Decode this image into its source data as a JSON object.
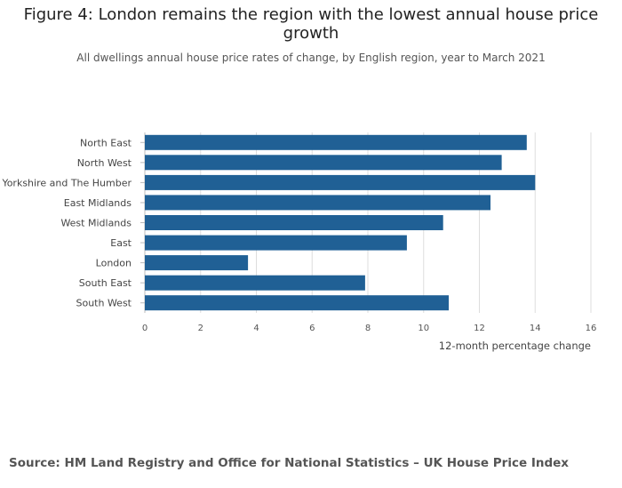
{
  "title": "Figure 4: London remains the region with the lowest annual house price growth",
  "subtitle": "All dwellings annual house price rates of change, by English region, year to March 2021",
  "source": "Source: HM Land Registry and Office for National Statistics – UK House Price Index",
  "colors": {
    "bar": "#206095",
    "grid": "#dddddd",
    "axis": "#bbbbbb"
  },
  "chart_data": {
    "type": "bar",
    "orientation": "horizontal",
    "categories": [
      "North East",
      "North West",
      "Yorkshire and The Humber",
      "East Midlands",
      "West Midlands",
      "East",
      "London",
      "South East",
      "South West"
    ],
    "values": [
      13.7,
      12.8,
      14.0,
      12.4,
      10.7,
      9.4,
      3.7,
      7.9,
      10.9
    ],
    "xlim": [
      0,
      16
    ],
    "xticks": [
      0,
      2,
      4,
      6,
      8,
      10,
      12,
      14,
      16
    ],
    "xlabel": "12-month percentage change",
    "ylabel": ""
  }
}
